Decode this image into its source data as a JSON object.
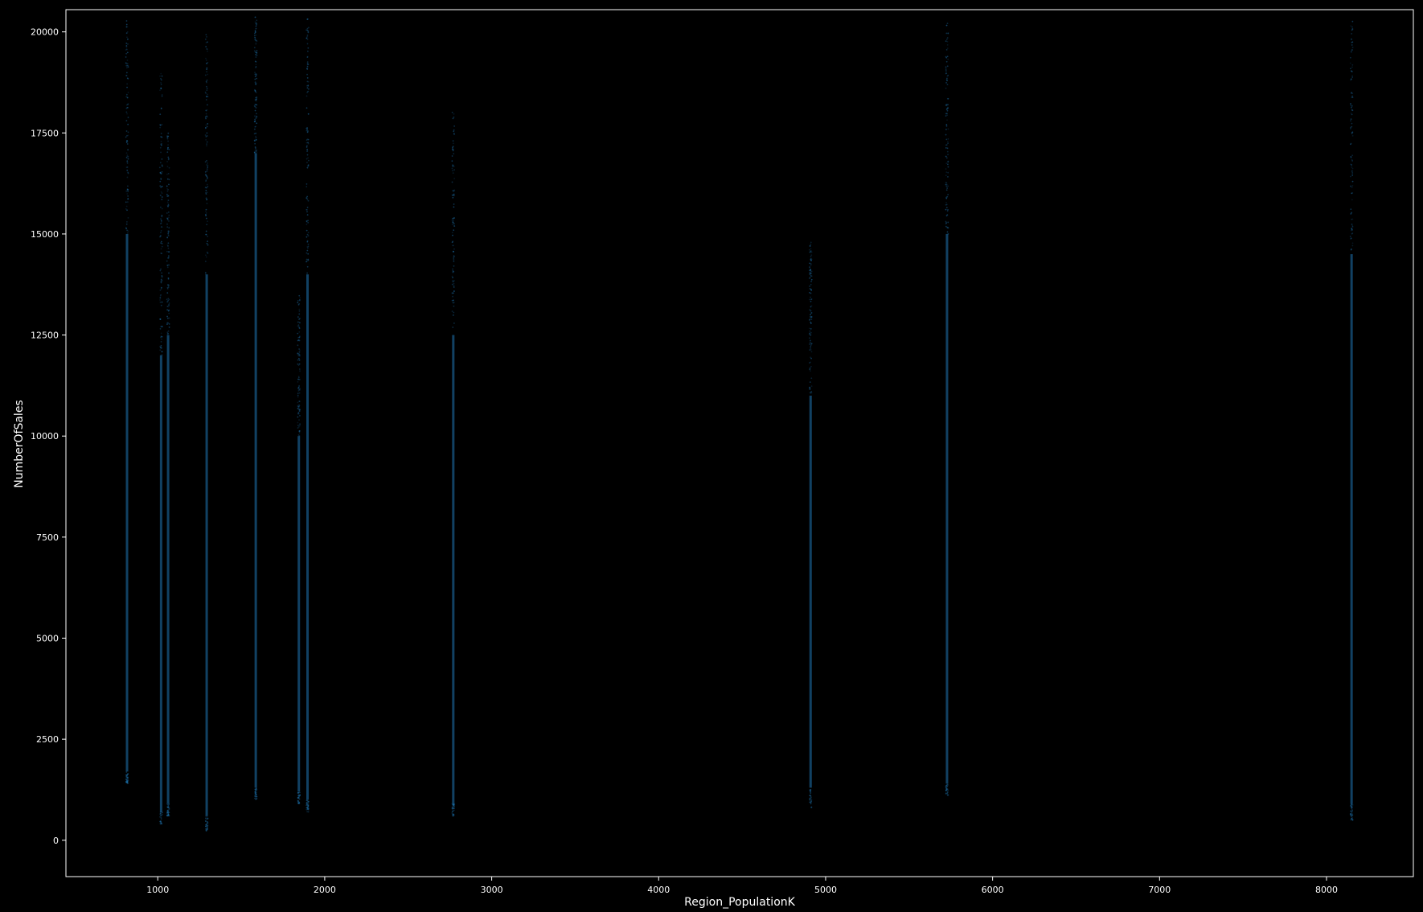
{
  "chart_data": {
    "type": "scatter",
    "title": "",
    "xlabel": "Region_PopulationK",
    "ylabel": "NumberOfSales",
    "xlim": [
      450,
      8520
    ],
    "ylim": [
      -900,
      20550
    ],
    "xticks": [
      1000,
      2000,
      3000,
      4000,
      5000,
      6000,
      7000,
      8000
    ],
    "yticks": [
      0,
      2500,
      5000,
      7500,
      10000,
      12500,
      15000,
      17500,
      20000
    ],
    "grid": false,
    "legend": "none",
    "colors": {
      "background": "#000000",
      "axes": "#ffffff",
      "points": "#1f77b4"
    },
    "series": [
      {
        "values": [
          {
            "x": 816,
            "ymin": 1400,
            "ymax": 20400,
            "ydense_min": 1700,
            "ydense_max": 15000
          },
          {
            "x": 1020,
            "ymin": 400,
            "ymax": 19000,
            "ydense_min": 700,
            "ydense_max": 12000
          },
          {
            "x": 1062,
            "ymin": 600,
            "ymax": 17500,
            "ydense_min": 900,
            "ydense_max": 12500
          },
          {
            "x": 1293,
            "ymin": 200,
            "ymax": 20000,
            "ydense_min": 600,
            "ydense_max": 14000
          },
          {
            "x": 1587,
            "ymin": 1000,
            "ymax": 20400,
            "ydense_min": 1300,
            "ydense_max": 17000
          },
          {
            "x": 1845,
            "ymin": 900,
            "ymax": 13500,
            "ydense_min": 1200,
            "ydense_max": 10000
          },
          {
            "x": 1897,
            "ymin": 700,
            "ymax": 20400,
            "ydense_min": 1000,
            "ydense_max": 14000
          },
          {
            "x": 2770,
            "ymin": 600,
            "ymax": 18200,
            "ydense_min": 900,
            "ydense_max": 12500
          },
          {
            "x": 4910,
            "ymin": 800,
            "ymax": 14800,
            "ydense_min": 1300,
            "ydense_max": 11000
          },
          {
            "x": 5727,
            "ymin": 1100,
            "ymax": 20400,
            "ydense_min": 1400,
            "ydense_max": 15000
          },
          {
            "x": 8150,
            "ymin": 500,
            "ymax": 20300,
            "ydense_min": 900,
            "ydense_max": 14500
          }
        ]
      }
    ]
  }
}
